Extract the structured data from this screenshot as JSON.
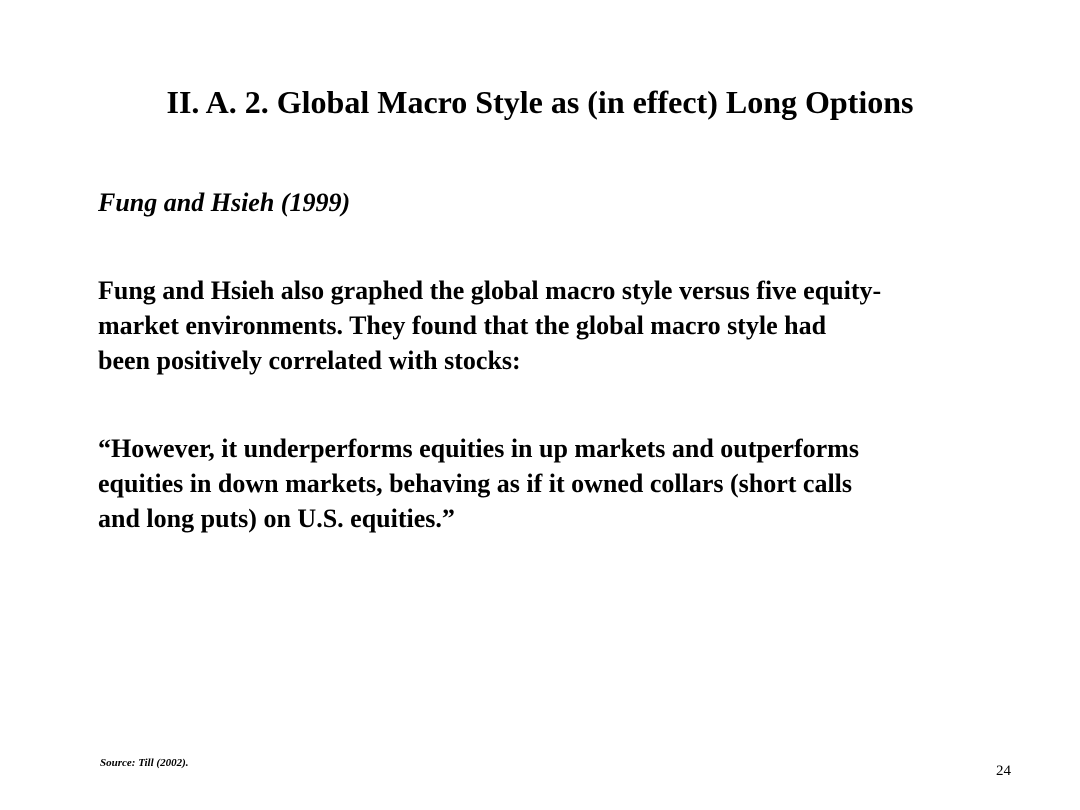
{
  "slide": {
    "title": "II.  A.  2.  Global Macro Style as (in effect) Long Options",
    "subtitle": "Fung and Hsieh (1999)",
    "paragraph1_lines": [
      "Fung and Hsieh also graphed the global macro style versus five equity-",
      "market environments.  They found that the global macro style had",
      "been positively correlated with stocks:"
    ],
    "quote_lines": [
      "“However, it underperforms equities in up markets and outperforms",
      "equities in down markets, behaving as if it owned collars (short calls",
      "and long puts) on U.S. equities.”"
    ],
    "source": "Source:  Till (2002).",
    "page_number": "24"
  }
}
